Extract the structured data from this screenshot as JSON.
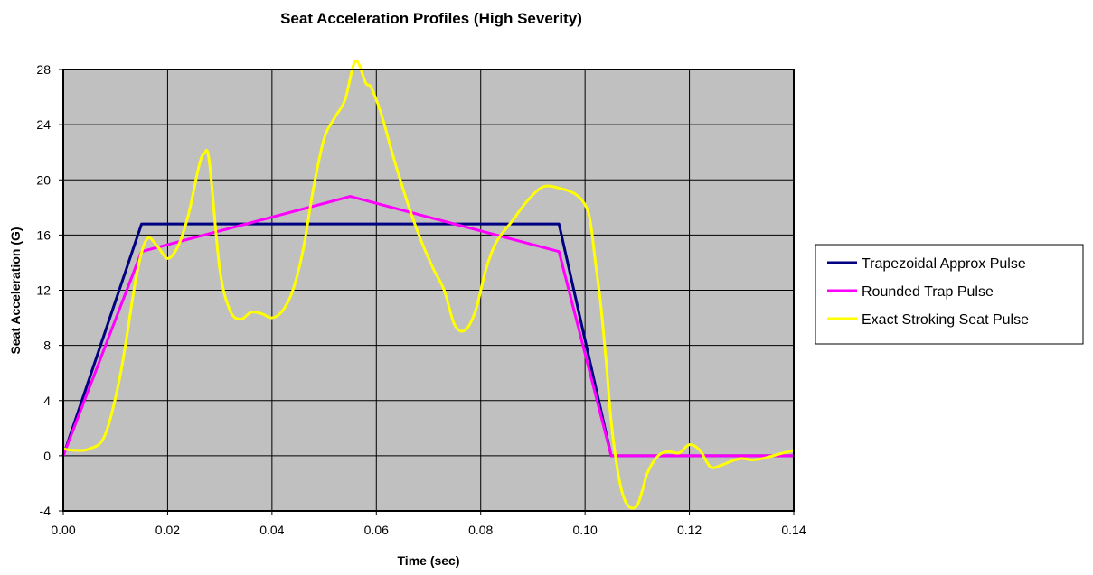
{
  "chart_data": {
    "type": "line",
    "title": "Seat Acceleration Profiles (High Severity)",
    "xlabel": "Time (sec)",
    "ylabel": "Seat Acceleration (G)",
    "xlim": [
      0,
      0.14
    ],
    "ylim": [
      -4,
      28
    ],
    "x_ticks": [
      "0.00",
      "0.02",
      "0.04",
      "0.06",
      "0.08",
      "0.10",
      "0.12",
      "0.14"
    ],
    "y_ticks": [
      "-4",
      "0",
      "4",
      "8",
      "12",
      "16",
      "20",
      "24",
      "28"
    ],
    "grid": true,
    "plot_background": "#c0c0c0",
    "legend_position": "right",
    "series": [
      {
        "name": "Trapezoidal Approx Pulse",
        "color": "#000080",
        "smooth": false,
        "x": [
          0,
          0.015,
          0.095,
          0.105,
          0.14
        ],
        "y": [
          0,
          16.8,
          16.8,
          0,
          0
        ]
      },
      {
        "name": "Rounded Trap Pulse",
        "color": "#ff00ff",
        "smooth": false,
        "x": [
          0,
          0.015,
          0.055,
          0.095,
          0.105,
          0.14
        ],
        "y": [
          0,
          14.8,
          18.8,
          14.8,
          0,
          0
        ]
      },
      {
        "name": "Exact Stroking Seat Pulse",
        "color": "#ffff00",
        "smooth": true,
        "x": [
          0,
          0.002,
          0.005,
          0.008,
          0.011,
          0.014,
          0.016,
          0.018,
          0.02,
          0.022,
          0.024,
          0.026,
          0.027,
          0.028,
          0.03,
          0.032,
          0.034,
          0.036,
          0.038,
          0.04,
          0.042,
          0.044,
          0.046,
          0.048,
          0.05,
          0.052,
          0.054,
          0.056,
          0.058,
          0.059,
          0.061,
          0.063,
          0.065,
          0.067,
          0.069,
          0.071,
          0.073,
          0.075,
          0.077,
          0.079,
          0.081,
          0.083,
          0.086,
          0.089,
          0.092,
          0.095,
          0.098,
          0.1,
          0.101,
          0.102,
          0.103,
          0.104,
          0.105,
          0.106,
          0.107,
          0.108,
          0.109,
          0.11,
          0.111,
          0.112,
          0.114,
          0.116,
          0.118,
          0.12,
          0.122,
          0.124,
          0.126,
          0.128,
          0.13,
          0.132,
          0.134,
          0.136,
          0.138,
          0.14
        ],
        "y": [
          0.5,
          0.4,
          0.5,
          1.5,
          6,
          13,
          15.7,
          15.2,
          14.3,
          15.2,
          17.5,
          21,
          21.9,
          21.3,
          13.5,
          10.5,
          9.9,
          10.4,
          10.3,
          10,
          10.5,
          12,
          15,
          19.5,
          23,
          24.5,
          25.8,
          28.6,
          27,
          26.7,
          24.7,
          22,
          19.5,
          17.2,
          15.2,
          13.5,
          12,
          9.5,
          9.1,
          10.5,
          13.5,
          15.5,
          17,
          18.5,
          19.5,
          19.4,
          19,
          18.2,
          17,
          14,
          11,
          7,
          2.5,
          -0.5,
          -2.5,
          -3.5,
          -3.8,
          -3.6,
          -2.5,
          -1.2,
          0,
          0.3,
          0.2,
          0.8,
          0.4,
          -0.8,
          -0.7,
          -0.4,
          -0.2,
          -0.3,
          -0.2,
          0,
          0.2,
          0.4
        ]
      }
    ]
  }
}
